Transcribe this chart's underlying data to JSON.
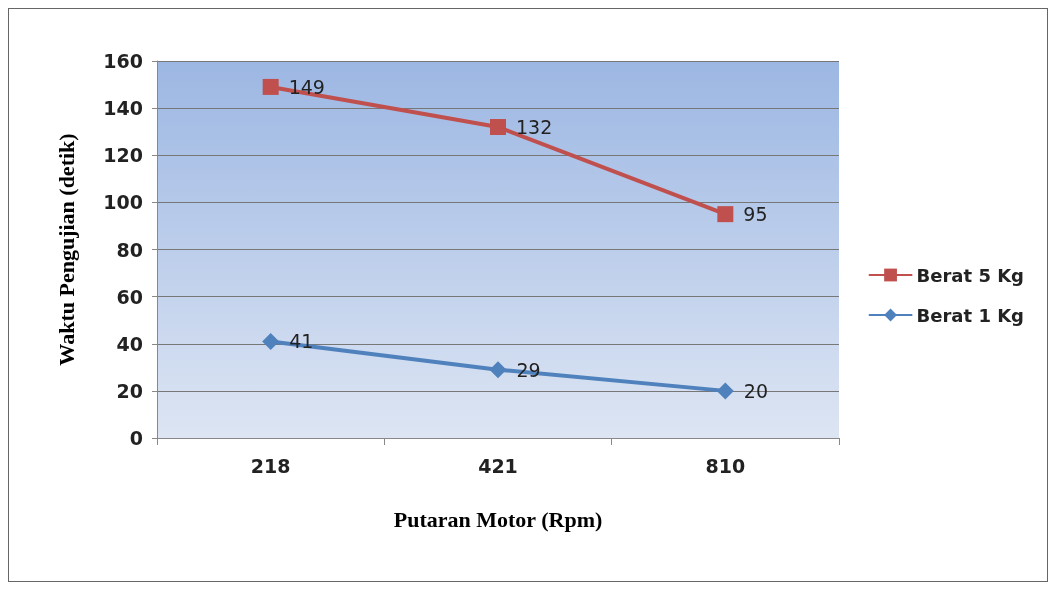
{
  "chart_data": {
    "type": "line",
    "xlabel": "Putaran Motor (Rpm)",
    "ylabel": "Waktu Pengujian (detik)",
    "categories": [
      "218",
      "421",
      "810"
    ],
    "series": [
      {
        "name": "Berat 5 Kg",
        "color": "#c0504d",
        "marker": "square",
        "values": [
          149,
          132,
          95
        ]
      },
      {
        "name": "Berat 1 Kg",
        "color": "#4f81bd",
        "marker": "diamond",
        "values": [
          41,
          29,
          20
        ]
      }
    ],
    "ylim": [
      0,
      160
    ],
    "yticks": [
      0,
      20,
      40,
      60,
      80,
      100,
      120,
      140,
      160
    ],
    "grid": "y",
    "legend": "right",
    "data_labels": true,
    "line_style": "solid"
  }
}
